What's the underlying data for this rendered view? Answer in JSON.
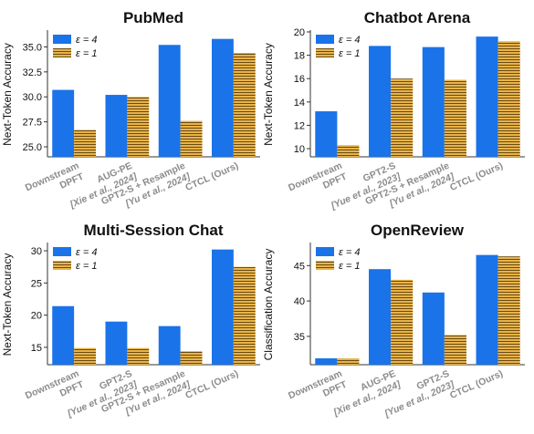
{
  "colors": {
    "eps4": "#1a73e8",
    "eps1_fill": "#e8b44a",
    "eps1_stripe": "#6b4a12",
    "axis": "#333333",
    "category_text": "#8c8c8c"
  },
  "chart_data": [
    {
      "type": "bar",
      "title": "PubMed",
      "ylabel": "Next-Token Accuracy",
      "xlabel": "",
      "categories": [
        [
          "Downstream",
          "DPFT"
        ],
        [
          "AUG-PE",
          "[Xie et al., 2024]"
        ],
        [
          "GPT2-S + Resample",
          "[Yu et al., 2024]"
        ],
        [
          "CTCL (Ours)"
        ]
      ],
      "yticks": [
        "25.0",
        "27.5",
        "30.0",
        "32.5",
        "35.0"
      ],
      "ylim": [
        24,
        36.5
      ],
      "series": [
        {
          "name": "ε = 4",
          "values": [
            30.7,
            30.2,
            35.2,
            35.8
          ]
        },
        {
          "name": "ε = 1",
          "values": [
            26.7,
            30.0,
            27.6,
            34.4
          ]
        }
      ],
      "legend": "top-left",
      "grid": false
    },
    {
      "type": "bar",
      "title": "Chatbot Arena",
      "ylabel": "Next-Token Accuracy",
      "xlabel": "",
      "categories": [
        [
          "Downstream",
          "DPFT"
        ],
        [
          "GPT2-S",
          "[Yue et al., 2023]"
        ],
        [
          "GPT2-S + Resample",
          "[Yu et al., 2024]"
        ],
        [
          "CTCL (Ours)"
        ]
      ],
      "yticks": [
        "10",
        "12",
        "14",
        "16",
        "18",
        "20"
      ],
      "ylim": [
        9.3,
        20
      ],
      "series": [
        {
          "name": "ε = 4",
          "values": [
            13.2,
            18.8,
            18.7,
            19.6
          ]
        },
        {
          "name": "ε = 1",
          "values": [
            10.3,
            16.0,
            15.9,
            19.2
          ]
        }
      ],
      "legend": "top-left",
      "grid": false
    },
    {
      "type": "bar",
      "title": "Multi-Session Chat",
      "ylabel": "Next-Token Accuracy",
      "xlabel": "",
      "categories": [
        [
          "Downstream",
          "DPFT"
        ],
        [
          "GPT2-S",
          "[Yue et al., 2023]"
        ],
        [
          "GPT2-S + Resample",
          "[Yu et al., 2024]"
        ],
        [
          "CTCL (Ours)"
        ]
      ],
      "yticks": [
        "15",
        "20",
        "25",
        "30"
      ],
      "ylim": [
        12.3,
        31
      ],
      "series": [
        {
          "name": "ε = 4",
          "values": [
            21.4,
            19.0,
            18.3,
            30.2
          ]
        },
        {
          "name": "ε = 1",
          "values": [
            14.9,
            14.9,
            14.4,
            27.5
          ]
        }
      ],
      "legend": "top-left",
      "grid": false
    },
    {
      "type": "bar",
      "title": "OpenReview",
      "ylabel": "Classification Accuracy",
      "xlabel": "",
      "categories": [
        [
          "Downstream",
          "DPFT"
        ],
        [
          "AUG-PE",
          "[Xie et al., 2024]"
        ],
        [
          "GPT2-S",
          "[Yue et al., 2023]"
        ],
        [
          "CTCL (Ours)"
        ]
      ],
      "yticks": [
        "35",
        "40",
        "45"
      ],
      "ylim": [
        31,
        48
      ],
      "series": [
        {
          "name": "ε = 4",
          "values": [
            31.9,
            44.5,
            41.2,
            46.5
          ]
        },
        {
          "name": "ε = 1",
          "values": [
            31.9,
            43.0,
            35.2,
            46.3
          ]
        }
      ],
      "legend": "top-left",
      "grid": false
    }
  ]
}
